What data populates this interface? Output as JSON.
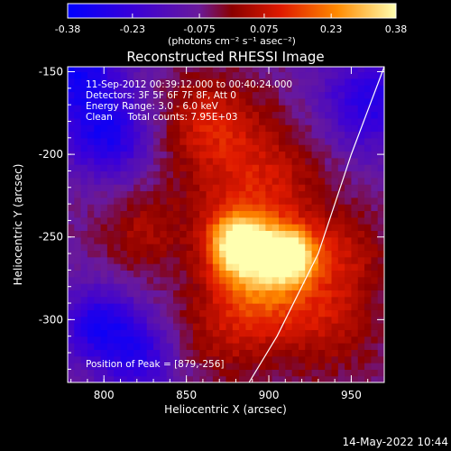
{
  "chart_data": {
    "type": "heatmap",
    "title": "Reconstructed RHESSI Image",
    "xlabel": "Heliocentric X (arcsec)",
    "ylabel": "Heliocentric Y (arcsec)",
    "xlim": [
      778,
      970
    ],
    "ylim": [
      -338,
      -147
    ],
    "x_ticks": [
      800,
      850,
      900,
      950
    ],
    "y_ticks": [
      -150,
      -200,
      -250,
      -300
    ],
    "colorbar": {
      "min": -0.38,
      "max": 0.38,
      "ticks": [
        "-0.38",
        "-0.23",
        "-0.075",
        "0.075",
        "0.23",
        "0.38"
      ],
      "tick_values": [
        -0.38,
        -0.23,
        -0.075,
        0.075,
        0.23,
        0.38
      ],
      "unit_label": "(photons cm⁻² s⁻¹ asec⁻²)"
    },
    "annotations": [
      "11-Sep-2012 00:39:12.000 to 00:40:24.000",
      "Detectors: 3F 5F 6F 7F 8F, Att 0",
      "Energy Range: 3.0 - 6.0 keV",
      "Clean     Total counts: 7.95E+03"
    ],
    "peak_label": "Position of Peak = [879,-256]",
    "sources": [
      {
        "x": 880,
        "y": -256,
        "amp": 0.38,
        "sigma": 13
      },
      {
        "x": 911,
        "y": -262,
        "amp": 0.36,
        "sigma": 11
      },
      {
        "x": 893,
        "y": -275,
        "amp": 0.24,
        "sigma": 20
      },
      {
        "x": 890,
        "y": -220,
        "amp": 0.18,
        "sigma": 30
      },
      {
        "x": 930,
        "y": -300,
        "amp": 0.15,
        "sigma": 25
      },
      {
        "x": 860,
        "y": -180,
        "amp": 0.14,
        "sigma": 20
      },
      {
        "x": 870,
        "y": -310,
        "amp": 0.12,
        "sigma": 22
      },
      {
        "x": 820,
        "y": -250,
        "amp": 0.11,
        "sigma": 18
      },
      {
        "x": 945,
        "y": -260,
        "amp": 0.1,
        "sigma": 18
      },
      {
        "x": 800,
        "y": -190,
        "amp": -0.22,
        "sigma": 18
      },
      {
        "x": 795,
        "y": -305,
        "amp": -0.22,
        "sigma": 16
      },
      {
        "x": 820,
        "y": -325,
        "amp": -0.18,
        "sigma": 16
      },
      {
        "x": 960,
        "y": -170,
        "amp": -0.2,
        "sigma": 22
      },
      {
        "x": 780,
        "y": -150,
        "amp": -0.25,
        "sigma": 20
      }
    ],
    "limb_curve": [
      [
        970,
        -147
      ],
      [
        950,
        -200
      ],
      [
        930,
        -260
      ],
      [
        905,
        -310
      ],
      [
        888,
        -338
      ]
    ]
  },
  "footer_date": "14-May-2022 10:44"
}
